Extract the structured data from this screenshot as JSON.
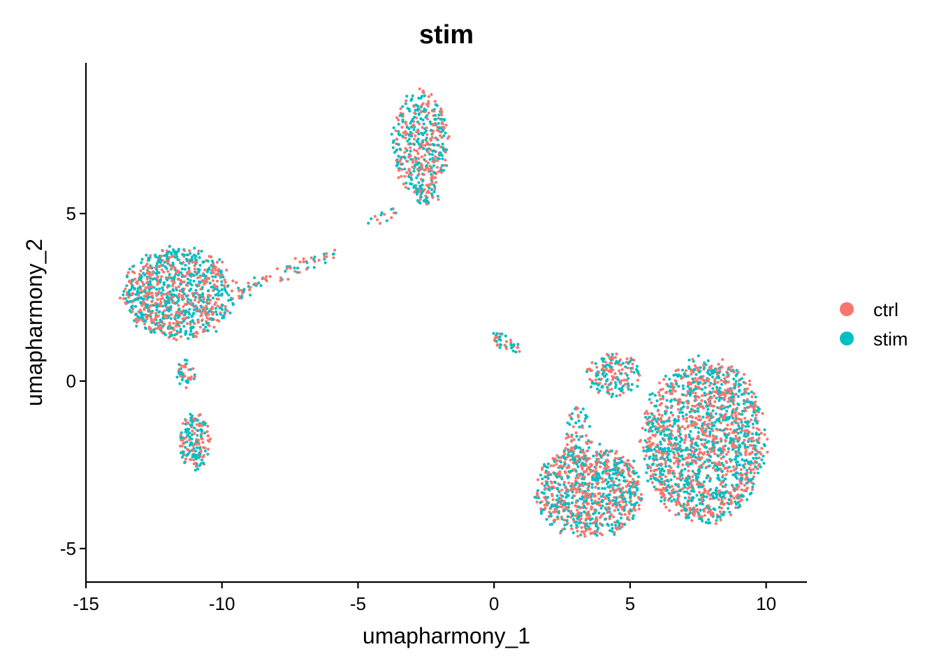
{
  "chart_data": {
    "type": "scatter",
    "title": "stim",
    "xlabel": "umapharmony_1",
    "ylabel": "umapharmony_2",
    "xlim": [
      -15,
      11.5
    ],
    "ylim": [
      -6,
      9.5
    ],
    "x_ticks": [
      "-15",
      "-10",
      "-5",
      "0",
      "5",
      "10"
    ],
    "x_tick_values": [
      -15,
      -10,
      -5,
      0,
      5,
      10
    ],
    "y_ticks": [
      "-5",
      "0",
      "5"
    ],
    "y_tick_values": [
      -5,
      0,
      5
    ],
    "grid": false,
    "legend_position": "right",
    "series": [
      {
        "name": "ctrl",
        "color": "#F8766D"
      },
      {
        "name": "stim",
        "color": "#00BFC4"
      }
    ],
    "clusters": [
      {
        "shape": "ellipse",
        "cx": -11.6,
        "cy": 2.6,
        "rx": 2.2,
        "ry": 1.45,
        "n": 950
      },
      {
        "shape": "ellipse",
        "cx": -11.0,
        "cy": -1.8,
        "rx": 0.6,
        "ry": 0.9,
        "n": 170
      },
      {
        "shape": "ellipse",
        "cx": -11.3,
        "cy": 0.2,
        "rx": 0.4,
        "ry": 0.45,
        "n": 40
      },
      {
        "shape": "ellipse",
        "cx": -2.7,
        "cy": 7.1,
        "rx": 1.1,
        "ry": 1.65,
        "n": 430
      },
      {
        "shape": "ellipse",
        "cx": -2.5,
        "cy": 5.5,
        "rx": 0.5,
        "ry": 0.35,
        "n": 40
      },
      {
        "shape": "line",
        "x0": -9.5,
        "y0": 2.6,
        "x1": -5.9,
        "y1": 3.8,
        "spread": 0.12,
        "n": 70
      },
      {
        "shape": "line",
        "x0": -4.9,
        "y0": 4.5,
        "x1": -3.6,
        "y1": 5.1,
        "spread": 0.1,
        "n": 14
      },
      {
        "shape": "line",
        "x0": 0.0,
        "y0": 1.3,
        "x1": 1.0,
        "y1": 0.9,
        "spread": 0.1,
        "n": 40
      },
      {
        "shape": "ellipse",
        "cx": 7.7,
        "cy": -1.8,
        "rx": 2.4,
        "ry": 2.6,
        "n": 1700
      },
      {
        "shape": "ellipse",
        "cx": 3.5,
        "cy": -3.3,
        "rx": 2.1,
        "ry": 1.5,
        "n": 900
      },
      {
        "shape": "ellipse",
        "cx": 4.4,
        "cy": 0.2,
        "rx": 1.1,
        "ry": 0.7,
        "n": 170
      },
      {
        "shape": "ellipse",
        "cx": 3.1,
        "cy": -1.8,
        "rx": 0.5,
        "ry": 1.2,
        "n": 70
      }
    ]
  }
}
